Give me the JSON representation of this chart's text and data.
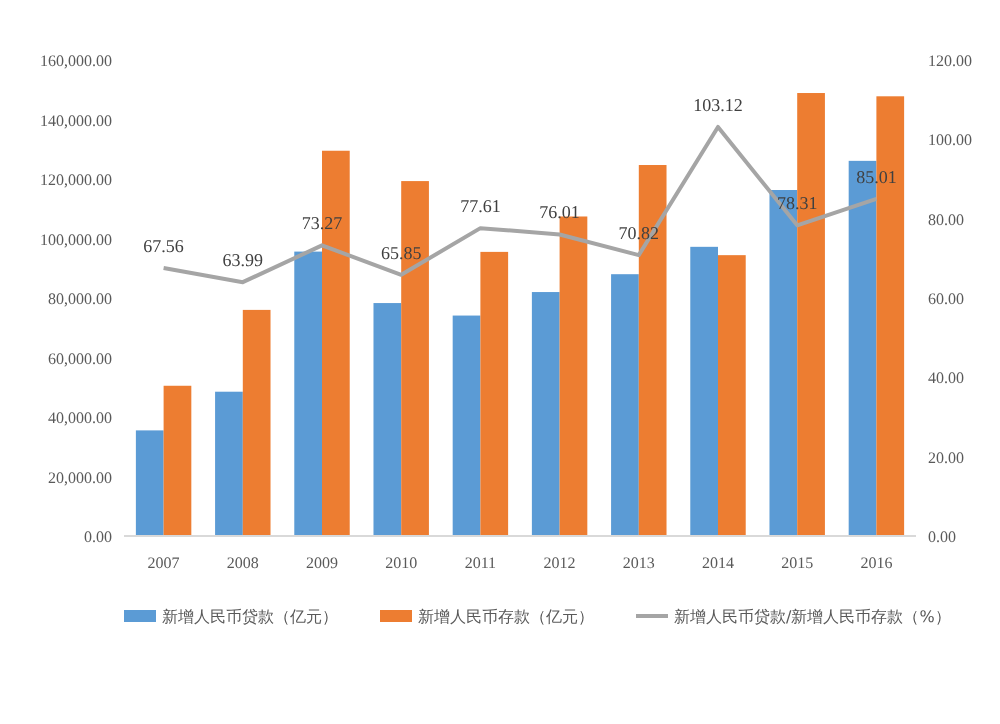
{
  "chart_data": {
    "type": "bar",
    "categories": [
      "2007",
      "2008",
      "2009",
      "2010",
      "2011",
      "2012",
      "2013",
      "2014",
      "2015",
      "2016"
    ],
    "series": [
      {
        "name": "新增人民币贷款（亿元）",
        "color": "#5b9bd5",
        "values": [
          35500,
          48500,
          95600,
          78300,
          74100,
          82000,
          88000,
          97200,
          116300,
          126100
        ]
      },
      {
        "name": "新增人民币存款（亿元）",
        "color": "#ed7d31",
        "values": [
          50500,
          76000,
          129500,
          119300,
          95500,
          107400,
          124700,
          94400,
          148900,
          147800
        ]
      },
      {
        "name": "新增人民币贷款/新增人民币存款（%）",
        "type": "line",
        "axis": "y2",
        "color": "#a5a5a5",
        "values": [
          67.56,
          63.99,
          73.27,
          65.85,
          77.61,
          76.01,
          70.82,
          103.12,
          78.31,
          85.01
        ],
        "value_labels": [
          "67.56",
          "63.99",
          "73.27",
          "65.85",
          "77.61",
          "76.01",
          "70.82",
          "103.12",
          "78.31",
          "85.01"
        ]
      }
    ],
    "ylim": [
      0,
      160000
    ],
    "yticks": [
      {
        "value": 0,
        "label": "0.00"
      },
      {
        "value": 20000,
        "label": "20,000.00"
      },
      {
        "value": 40000,
        "label": "40,000.00"
      },
      {
        "value": 60000,
        "label": "60,000.00"
      },
      {
        "value": 80000,
        "label": "80,000.00"
      },
      {
        "value": 100000,
        "label": "100,000.00"
      },
      {
        "value": 120000,
        "label": "120,000.00"
      },
      {
        "value": 140000,
        "label": "140,000.00"
      },
      {
        "value": 160000,
        "label": "160,000.00"
      }
    ],
    "y2lim": [
      0,
      120
    ],
    "y2ticks": [
      {
        "value": 0,
        "label": "0.00"
      },
      {
        "value": 20,
        "label": "20.00"
      },
      {
        "value": 40,
        "label": "40.00"
      },
      {
        "value": 60,
        "label": "60.00"
      },
      {
        "value": 80,
        "label": "80.00"
      },
      {
        "value": 100,
        "label": "100.00"
      },
      {
        "value": 120,
        "label": "120.00"
      }
    ],
    "legend": "bottom"
  }
}
